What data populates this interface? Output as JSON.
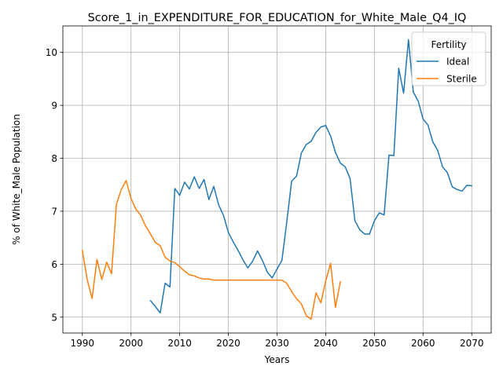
{
  "chart_data": {
    "type": "line",
    "title": "Score_1_in_EXPENDITURE_FOR_EDUCATION_for_White_Male_Q4_IQ",
    "xlabel": "Years",
    "ylabel": "% of White_Male Population",
    "xlim": [
      1986,
      2074
    ],
    "ylim": [
      4.7,
      10.5
    ],
    "xticks": [
      1990,
      2000,
      2010,
      2020,
      2030,
      2040,
      2050,
      2060,
      2070
    ],
    "yticks": [
      5,
      6,
      7,
      8,
      9,
      10
    ],
    "grid": true,
    "legend": {
      "title": "Fertility",
      "placement": "top-right"
    },
    "series": [
      {
        "name": "Ideal",
        "color": "#1f77b4",
        "x": [
          2004,
          2005,
          2006,
          2007,
          2008,
          2009,
          2010,
          2011,
          2012,
          2013,
          2014,
          2015,
          2016,
          2017,
          2018,
          2019,
          2020,
          2021,
          2022,
          2023,
          2024,
          2025,
          2026,
          2027,
          2028,
          2029,
          2030,
          2031,
          2032,
          2033,
          2034,
          2035,
          2036,
          2037,
          2038,
          2039,
          2040,
          2041,
          2042,
          2043,
          2044,
          2045,
          2046,
          2047,
          2048,
          2049,
          2050,
          2051,
          2052,
          2053,
          2054,
          2055,
          2056,
          2057,
          2058,
          2059,
          2060,
          2061,
          2062,
          2063,
          2064,
          2065,
          2066,
          2067,
          2068,
          2069,
          2070
        ],
        "values": [
          5.31,
          5.2,
          5.08,
          5.64,
          5.57,
          7.43,
          7.3,
          7.55,
          7.42,
          7.65,
          7.43,
          7.6,
          7.22,
          7.47,
          7.12,
          6.92,
          6.6,
          6.42,
          6.26,
          6.08,
          5.93,
          6.06,
          6.25,
          6.07,
          5.85,
          5.74,
          5.91,
          6.07,
          6.8,
          7.57,
          7.66,
          8.1,
          8.26,
          8.32,
          8.49,
          8.59,
          8.62,
          8.42,
          8.11,
          7.91,
          7.84,
          7.62,
          6.82,
          6.65,
          6.57,
          6.57,
          6.82,
          6.97,
          6.93,
          8.06,
          8.05,
          9.7,
          9.23,
          10.24,
          9.25,
          9.08,
          8.74,
          8.63,
          8.31,
          8.15,
          7.84,
          7.73,
          7.46,
          7.41,
          7.38,
          7.49,
          7.48
        ]
      },
      {
        "name": "Sterile",
        "color": "#ff7f0e",
        "x": [
          1990,
          1991,
          1992,
          1993,
          1994,
          1995,
          1996,
          1997,
          1998,
          1999,
          2000,
          2001,
          2002,
          2003,
          2004,
          2005,
          2006,
          2007,
          2008,
          2009,
          2010,
          2011,
          2012,
          2013,
          2014,
          2015,
          2016,
          2017,
          2018,
          2019,
          2020,
          2021,
          2022,
          2023,
          2024,
          2025,
          2026,
          2027,
          2028,
          2029,
          2030,
          2031,
          2032,
          2033,
          2034,
          2035,
          2036,
          2037,
          2038,
          2039,
          2040,
          2041,
          2042,
          2043
        ],
        "values": [
          6.26,
          5.71,
          5.35,
          6.09,
          5.71,
          6.04,
          5.82,
          7.13,
          7.41,
          7.58,
          7.24,
          7.04,
          6.92,
          6.72,
          6.57,
          6.41,
          6.35,
          6.13,
          6.06,
          6.03,
          5.95,
          5.87,
          5.8,
          5.78,
          5.74,
          5.72,
          5.72,
          5.7,
          5.7,
          5.7,
          5.7,
          5.7,
          5.7,
          5.7,
          5.7,
          5.7,
          5.7,
          5.7,
          5.7,
          5.7,
          5.7,
          5.7,
          5.64,
          5.48,
          5.35,
          5.25,
          5.03,
          4.96,
          5.46,
          5.27,
          5.68,
          6.02,
          5.18,
          5.67
        ]
      }
    ]
  }
}
